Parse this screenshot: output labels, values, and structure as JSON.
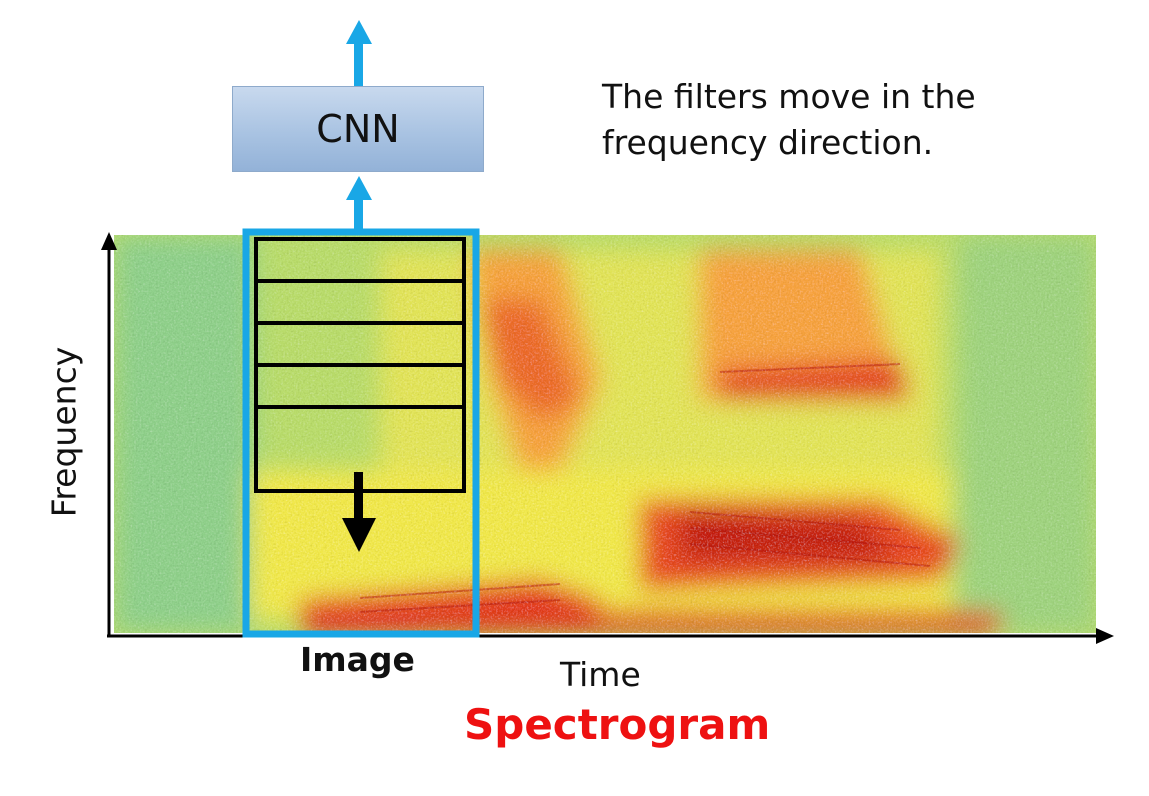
{
  "cnn": {
    "label": "CNN"
  },
  "caption": {
    "line1": "The filters move in the",
    "line2": "frequency direction."
  },
  "axes": {
    "y_label": "Frequency",
    "x_label": "Time"
  },
  "image_label": "Image",
  "title": "Spectrogram",
  "filter_count": 5,
  "colors": {
    "arrow_blue": "#19a7e6",
    "window_blue": "#19a7e6",
    "title_red": "#ee1111",
    "cnn_box": "#a9c3e2",
    "spectro_low": "#3ec7c0",
    "spectro_mid": "#f7e83a",
    "spectro_high": "#e01e0a"
  }
}
